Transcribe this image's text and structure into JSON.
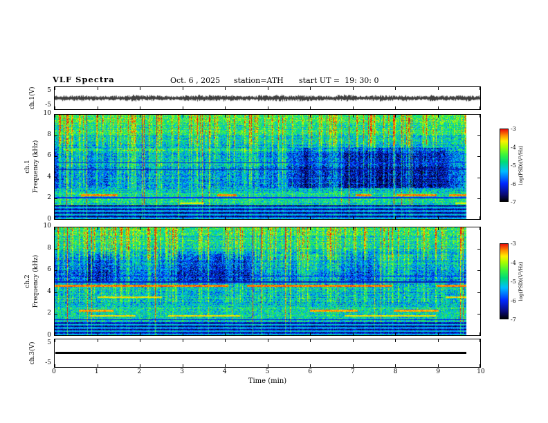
{
  "header": {
    "title": "VLF Spectra",
    "date": "Oct. 6 , 2025",
    "station": "station=ATH",
    "start_ut": "start UT =  19: 30: 0"
  },
  "axes": {
    "x": {
      "label": "Time (min)",
      "range": [
        0,
        10
      ],
      "ticks": [
        0,
        1,
        2,
        3,
        4,
        5,
        6,
        7,
        8,
        9,
        10
      ]
    },
    "ch1_volt": {
      "label": "ch.1(V)",
      "range": [
        -5,
        5
      ],
      "ticks": [
        5,
        -5
      ]
    },
    "ch1_freq": {
      "channel": "ch.1",
      "label": "Frequency (kHz)",
      "range": [
        0,
        10
      ],
      "ticks": [
        10,
        8,
        6,
        4,
        2,
        0
      ]
    },
    "ch2_freq": {
      "channel": "ch.2",
      "label": "Frequency (kHz)",
      "range": [
        0,
        10
      ],
      "ticks": [
        10,
        8,
        6,
        4,
        2,
        0
      ]
    },
    "ch3_volt": {
      "label": "ch.3(V)",
      "range": [
        -5,
        5
      ],
      "ticks": [
        5,
        -5
      ]
    },
    "colorbar": {
      "label": "log(PSD)(V²/Hz)",
      "range": [
        -7,
        -3
      ],
      "ticks": [
        -3,
        -4,
        -5,
        -6,
        -7
      ]
    }
  },
  "chart_data": [
    {
      "type": "line",
      "name": "ch1-voltage-trace",
      "panel": "ch.1(V)",
      "x_range": [
        0,
        10
      ],
      "x_unit": "min",
      "y_range": [
        -5,
        5
      ],
      "y_unit": "V",
      "description": "Dense broadband noise waveform centered on 0 V, typical excursions ±1-2 V with frequent impulsive spikes to about ±4 V across the whole 10 minutes",
      "gen": {
        "seed": 77,
        "baseEnv": 1.0,
        "spikeProb": 0.06
      }
    },
    {
      "type": "heatmap",
      "name": "ch1-spectrogram",
      "panel": "ch.1 Frequency (kHz)",
      "x_range": [
        0,
        10
      ],
      "x_unit": "min",
      "y_range": [
        0,
        10
      ],
      "y_unit": "kHz",
      "value_label": "log(PSD)(V²/Hz)",
      "value_range": [
        -7,
        -3
      ],
      "colormap": "jet",
      "features": [
        "intense yellow/red vertical sferic streaks above ~7 kHz on a green background",
        "blue / dark-blue low-power patches between ~3 and 6.5 kHz",
        "intermittent hot (red/orange) horizontal band near 2.3 kHz",
        "thin dark horizontal lines near 4.7 and 5.4 kHz",
        "alternating black/green horizontal stripes below ~1.3 kHz"
      ],
      "gen": {
        "seed": 20251006,
        "noise": 0.2,
        "streakAmt": 0.5,
        "impulseProb": 0.025,
        "profile": [
          {
            "fmin": 9.3,
            "fmax": 10.01,
            "v": 0.6
          },
          {
            "fmin": 8.0,
            "fmax": 9.3,
            "v": 0.55
          },
          {
            "fmin": 6.5,
            "fmax": 8.0,
            "v": 0.45
          },
          {
            "fmin": 5.0,
            "fmax": 6.5,
            "v": 0.36
          },
          {
            "fmin": 3.0,
            "fmax": 5.0,
            "v": 0.3
          },
          {
            "fmin": 2.6,
            "fmax": 3.0,
            "v": 0.46
          },
          {
            "fmin": 1.3,
            "fmax": 2.6,
            "v": 0.52
          },
          {
            "fmin": 0,
            "fmax": 1.3,
            "v": 0.3
          }
        ],
        "streakProfile": [
          {
            "fmin": 7,
            "fmax": 10.01,
            "g": 1.0
          },
          {
            "fmin": 3,
            "fmax": 7,
            "g": 0.6
          },
          {
            "fmin": 0,
            "fmax": 3,
            "g": 0.18
          }
        ],
        "patch": {
          "fmin": 3.0,
          "fmax": 6.8,
          "depth": 0.34
        },
        "stripe": {
          "fmax": 1.3,
          "period": 0.34,
          "lo": 0.06,
          "hi": 0.46
        },
        "bands": [
          {
            "f": 2.3,
            "w": 0.1,
            "type": "hot",
            "dash": 0.45,
            "v": 0.92
          },
          {
            "f": 1.5,
            "w": 0.06,
            "type": "hot",
            "dash": 0.22,
            "v": 0.82
          },
          {
            "f": 2.05,
            "w": 0.04,
            "type": "dark",
            "v": 0.25
          },
          {
            "f": 4.72,
            "w": 0.05,
            "type": "dark",
            "v": 0.16
          },
          {
            "f": 5.4,
            "w": 0.04,
            "type": "dark",
            "v": 0.22
          }
        ]
      }
    },
    {
      "type": "heatmap",
      "name": "ch2-spectrogram",
      "panel": "ch.2 Frequency (kHz)",
      "x_range": [
        0,
        10
      ],
      "x_unit": "min",
      "y_range": [
        0,
        10
      ],
      "y_unit": "kHz",
      "value_label": "log(PSD)(V²/Hz)",
      "value_range": [
        -7,
        -3
      ],
      "colormap": "jet",
      "features": [
        "yellow/red vertical sferic streaks above ~7 kHz",
        "blue low-power patches between ~5 and 7.5 kHz",
        "strong nearly continuous red horizontal line near 4.6 kHz with a dark line just above",
        "intermittent hot horizontal bands near 3.55, 2.25 and 1.8 kHz",
        "mostly green background between 1.2 and 5 kHz",
        "alternating black/green horizontal stripes below ~1.2 kHz"
      ],
      "gen": {
        "seed": 19300,
        "noise": 0.2,
        "streakAmt": 0.5,
        "impulseProb": 0.025,
        "profile": [
          {
            "fmin": 9.3,
            "fmax": 10.01,
            "v": 0.58
          },
          {
            "fmin": 8.0,
            "fmax": 9.3,
            "v": 0.52
          },
          {
            "fmin": 6.5,
            "fmax": 8.0,
            "v": 0.42
          },
          {
            "fmin": 5.0,
            "fmax": 6.5,
            "v": 0.36
          },
          {
            "fmin": 2.6,
            "fmax": 5.0,
            "v": 0.44
          },
          {
            "fmin": 1.2,
            "fmax": 2.6,
            "v": 0.5
          },
          {
            "fmin": 0,
            "fmax": 1.2,
            "v": 0.3
          }
        ],
        "streakProfile": [
          {
            "fmin": 7,
            "fmax": 10.01,
            "g": 1.0
          },
          {
            "fmin": 3,
            "fmax": 7,
            "g": 0.55
          },
          {
            "fmin": 0,
            "fmax": 3,
            "g": 0.18
          }
        ],
        "patch": {
          "fmin": 4.8,
          "fmax": 7.5,
          "depth": 0.3
        },
        "stripe": {
          "fmax": 1.2,
          "period": 0.3,
          "lo": 0.06,
          "hi": 0.46
        },
        "bands": [
          {
            "f": 4.6,
            "w": 0.1,
            "type": "hot",
            "dash": 0.8,
            "v": 0.93
          },
          {
            "f": 4.95,
            "w": 0.05,
            "type": "dark",
            "v": 0.18
          },
          {
            "f": 3.55,
            "w": 0.07,
            "type": "hot",
            "dash": 0.35,
            "v": 0.85
          },
          {
            "f": 2.25,
            "w": 0.09,
            "type": "hot",
            "dash": 0.5,
            "v": 0.9
          },
          {
            "f": 1.8,
            "w": 0.06,
            "type": "hot",
            "dash": 0.35,
            "v": 0.85
          },
          {
            "f": 5.5,
            "w": 0.04,
            "type": "dark",
            "v": 0.24
          },
          {
            "f": 1.45,
            "w": 0.05,
            "type": "dark",
            "v": 0.2
          }
        ]
      }
    },
    {
      "type": "line",
      "name": "ch3-voltage-trace",
      "panel": "ch.3(V)",
      "x_range": [
        0,
        10
      ],
      "x_unit": "min",
      "y_range": [
        -5,
        5
      ],
      "y_unit": "V",
      "constant_value": 0,
      "description": "Flat thick black line at exactly 0 V for the whole interval (channel off / no signal)"
    }
  ]
}
